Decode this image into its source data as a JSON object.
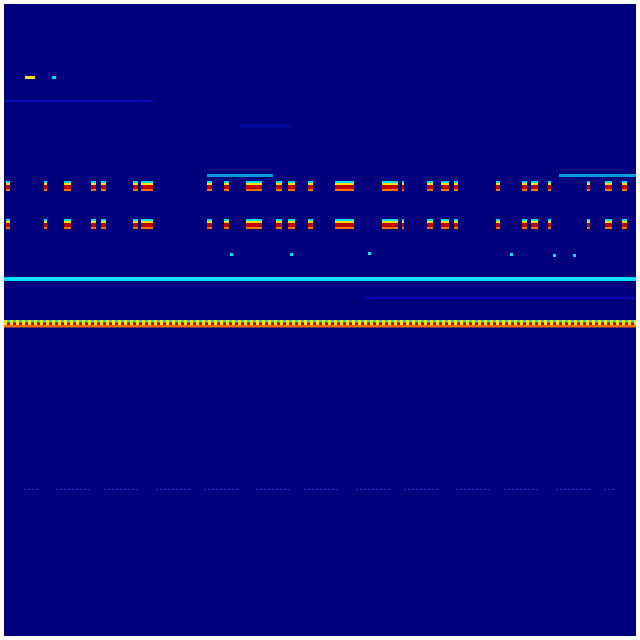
{
  "image": {
    "kind": "spectrogram heatmap",
    "colormap": "jet",
    "colors": {
      "background": "#00007f",
      "faint_line": "#0010c8",
      "cyan": "#00e0ff",
      "yellow": "#ffe000",
      "orange": "#ff7000",
      "red": "#c00000"
    },
    "axes_visible": false,
    "grid": false
  }
}
